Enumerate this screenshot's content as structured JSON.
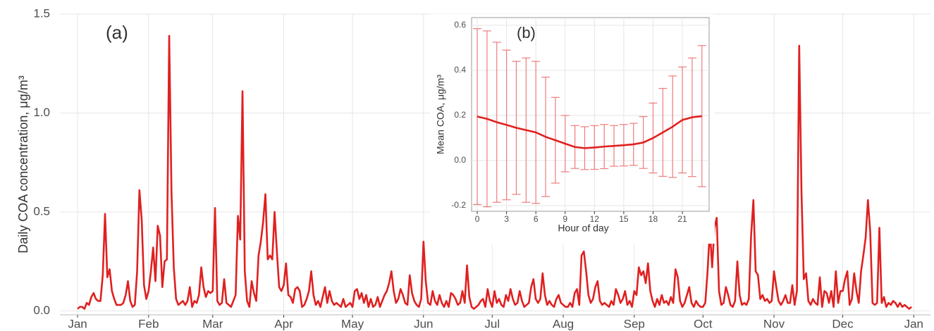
{
  "chart_data": [
    {
      "type": "line",
      "title": "(a)",
      "ylabel": "Daily COA concentration,  μg/m³",
      "color": "#e02020",
      "grid": true,
      "xlim": [
        -7.7,
        372.3
      ],
      "xticks": [
        {
          "value": 0,
          "label": "Jan"
        },
        {
          "value": 31,
          "label": "Feb"
        },
        {
          "value": 59,
          "label": "Mar"
        },
        {
          "value": 90,
          "label": "Apr"
        },
        {
          "value": 120,
          "label": "May"
        },
        {
          "value": 151,
          "label": "Jun"
        },
        {
          "value": 181,
          "label": "Jul"
        },
        {
          "value": 212,
          "label": "Aug"
        },
        {
          "value": 243,
          "label": "Sep"
        },
        {
          "value": 273,
          "label": "Oct"
        },
        {
          "value": 304,
          "label": "Nov"
        },
        {
          "value": 334,
          "label": "Dec"
        },
        {
          "value": 365,
          "label": "Jan"
        }
      ],
      "ylim": [
        -0.02,
        1.5
      ],
      "yticks": [
        {
          "value": 0,
          "label": "0.0"
        },
        0.5,
        {
          "value": 1,
          "label": "1.0"
        },
        1.5
      ],
      "values": [
        0.01,
        0.02,
        0.02,
        0.01,
        0.04,
        0.03,
        0.07,
        0.09,
        0.06,
        0.05,
        0.05,
        0.18,
        0.49,
        0.17,
        0.21,
        0.1,
        0.06,
        0.03,
        0.03,
        0.03,
        0.04,
        0.08,
        0.15,
        0.05,
        0.02,
        0.03,
        0.2,
        0.61,
        0.46,
        0.13,
        0.06,
        0.1,
        0.2,
        0.32,
        0.15,
        0.43,
        0.38,
        0.12,
        0.25,
        0.26,
        1.39,
        0.6,
        0.22,
        0.06,
        0.03,
        0.04,
        0.05,
        0.03,
        0.05,
        0.12,
        0.02,
        0.05,
        0.04,
        0.08,
        0.22,
        0.12,
        0.07,
        0.1,
        0.09,
        0.1,
        0.52,
        0.05,
        0.03,
        0.04,
        0.16,
        0.04,
        0.03,
        0.02,
        0.05,
        0.08,
        0.48,
        0.36,
        1.11,
        0.2,
        0.05,
        0.02,
        0.15,
        0.09,
        0.05,
        0.28,
        0.35,
        0.45,
        0.59,
        0.26,
        0.28,
        0.26,
        0.5,
        0.3,
        0.12,
        0.1,
        0.13,
        0.24,
        0.08,
        0.07,
        0.04,
        0.11,
        0.12,
        0.1,
        0.02,
        0.03,
        0.06,
        0.1,
        0.2,
        0.08,
        0.03,
        0.05,
        0.02,
        0.07,
        0.12,
        0.04,
        0.1,
        0.05,
        0.03,
        0.04,
        0.03,
        0.02,
        0.06,
        0.02,
        0.03,
        0.04,
        0.02,
        0.1,
        0.11,
        0.06,
        0.09,
        0.04,
        0.08,
        0.02,
        0.06,
        0.02,
        0.03,
        0.07,
        0.02,
        0.05,
        0.08,
        0.1,
        0.14,
        0.2,
        0.1,
        0.04,
        0.06,
        0.11,
        0.08,
        0.04,
        0.03,
        0.18,
        0.09,
        0.05,
        0.03,
        0.02,
        0.06,
        0.35,
        0.15,
        0.04,
        0.03,
        0.1,
        0.05,
        0.03,
        0.08,
        0.04,
        0.02,
        0.05,
        0.02,
        0.09,
        0.08,
        0.06,
        0.03,
        0.04,
        0.1,
        0.04,
        0.23,
        0.07,
        0.02,
        0.01,
        0.02,
        0.03,
        0.05,
        0.06,
        0.02,
        0.11,
        0.05,
        0.02,
        0.1,
        0.04,
        0.06,
        0.03,
        0.02,
        0.08,
        0.05,
        0.11,
        0.06,
        0.03,
        0.04,
        0.1,
        0.05,
        0.02,
        0.03,
        0.04,
        0.12,
        0.16,
        0.06,
        0.04,
        0.06,
        0.19,
        0.08,
        0.03,
        0.05,
        0.03,
        0.02,
        0.06,
        0.08,
        0.04,
        0.03,
        0.02,
        0.02,
        0.04,
        0.02,
        0.09,
        0.11,
        0.03,
        0.28,
        0.3,
        0.2,
        0.08,
        0.04,
        0.06,
        0.12,
        0.15,
        0.05,
        0.03,
        0.04,
        0.03,
        0.02,
        0.05,
        0.03,
        0.11,
        0.08,
        0.04,
        0.06,
        0.1,
        0.03,
        0.05,
        0.02,
        0.1,
        0.08,
        0.22,
        0.18,
        0.2,
        0.14,
        0.24,
        0.1,
        0.05,
        0.02,
        0.06,
        0.03,
        0.08,
        0.04,
        0.05,
        0.03,
        0.07,
        0.04,
        0.21,
        0.17,
        0.05,
        0.02,
        0.04,
        0.08,
        0.12,
        0.04,
        0.02,
        0.05,
        0.03,
        0.02,
        0.02,
        0.04,
        0.2,
        0.41,
        0.22,
        0.42,
        0.47,
        0.1,
        0.03,
        0.04,
        0.12,
        0.08,
        0.03,
        0.02,
        0.05,
        0.25,
        0.08,
        0.03,
        0.04,
        0.03,
        0.06,
        0.38,
        0.56,
        0.2,
        0.18,
        0.06,
        0.08,
        0.05,
        0.06,
        0.04,
        0.05,
        0.2,
        0.12,
        0.05,
        0.03,
        0.05,
        0.08,
        0.04,
        0.04,
        0.13,
        0.03,
        0.1,
        1.34,
        0.6,
        0.16,
        0.19,
        0.05,
        0.03,
        0.06,
        0.04,
        0.03,
        0.17,
        0.02,
        0.1,
        0.09,
        0.04,
        0.1,
        0.02,
        0.2,
        0.04,
        0.1,
        0.1,
        0.16,
        0.2,
        0.03,
        0.06,
        0.19,
        0.1,
        0.04,
        0.2,
        0.28,
        0.37,
        0.56,
        0.4,
        0.04,
        0.03,
        0.04,
        0.42,
        0.04,
        0.07,
        0.02,
        0.04,
        0.03,
        0.05,
        0.04,
        0.02,
        0.04,
        0.02,
        0.03,
        0.02,
        0.01,
        0.02
      ]
    },
    {
      "type": "errorline",
      "title": "(b)",
      "xlabel": "Hour of day",
      "ylabel": "Mean COA,  μg/m³",
      "color": "#e02020",
      "error_color": "#ef7b7b",
      "grid": true,
      "x": [
        0,
        1,
        2,
        3,
        4,
        5,
        6,
        7,
        8,
        9,
        10,
        11,
        12,
        13,
        14,
        15,
        16,
        17,
        18,
        19,
        20,
        21,
        22,
        23
      ],
      "xlim": [
        -0.58,
        23.74
      ],
      "xticks": [
        0,
        3,
        6,
        9,
        12,
        15,
        18,
        21
      ],
      "ylim": [
        -0.225,
        0.634
      ],
      "yticks": [
        -0.2,
        {
          "value": 0,
          "label": "0.0"
        },
        0.2,
        0.4,
        0.6
      ],
      "values": [
        0.195,
        0.185,
        0.17,
        0.158,
        0.145,
        0.135,
        0.125,
        0.105,
        0.09,
        0.075,
        0.06,
        0.055,
        0.058,
        0.062,
        0.065,
        0.068,
        0.072,
        0.08,
        0.1,
        0.125,
        0.15,
        0.18,
        0.192,
        0.197
      ],
      "errors": [
        0.39,
        0.39,
        0.355,
        0.332,
        0.295,
        0.32,
        0.315,
        0.265,
        0.19,
        0.125,
        0.095,
        0.095,
        0.097,
        0.098,
        0.09,
        0.092,
        0.093,
        0.115,
        0.155,
        0.195,
        0.225,
        0.235,
        0.263,
        0.313
      ]
    }
  ]
}
